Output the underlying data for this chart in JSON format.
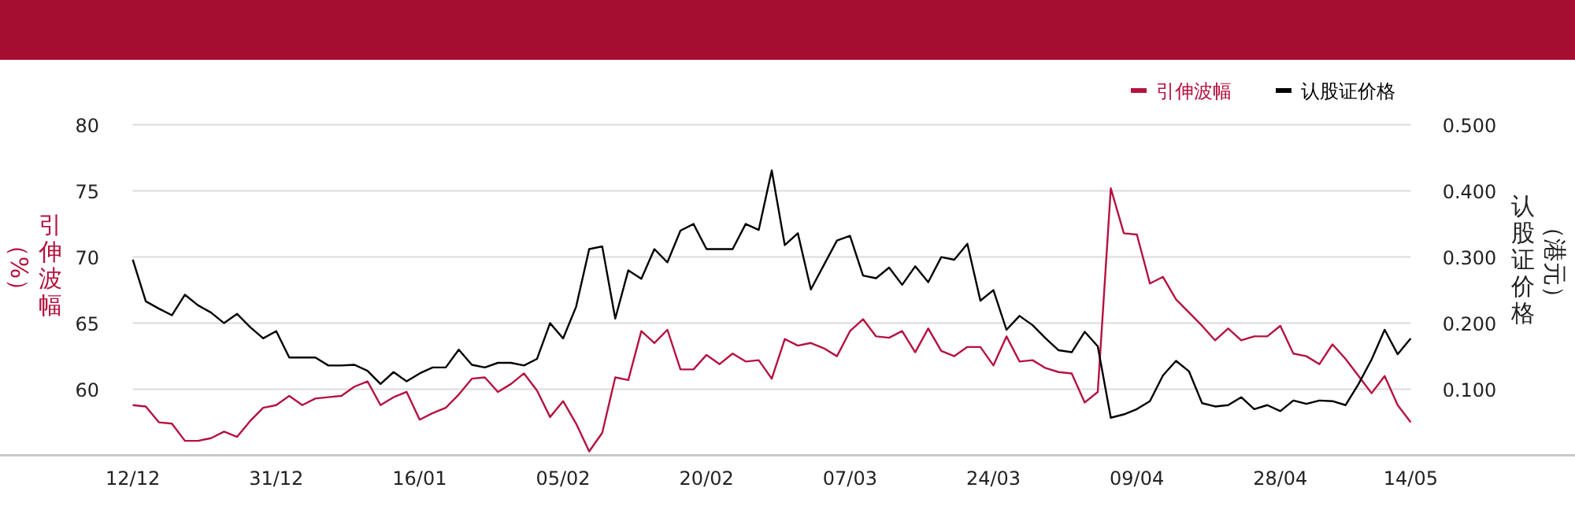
{
  "chart_data": {
    "type": "line",
    "categories": [
      "12/12",
      null,
      null,
      null,
      null,
      null,
      null,
      null,
      null,
      null,
      null,
      "31/12",
      null,
      null,
      null,
      null,
      null,
      null,
      null,
      null,
      null,
      null,
      "16/01",
      null,
      null,
      null,
      null,
      null,
      null,
      null,
      null,
      null,
      null,
      "05/02",
      null,
      null,
      null,
      null,
      null,
      null,
      null,
      null,
      null,
      null,
      "20/02",
      null,
      null,
      null,
      null,
      null,
      null,
      null,
      null,
      null,
      null,
      "07/03",
      null,
      null,
      null,
      null,
      null,
      null,
      null,
      null,
      null,
      null,
      "24/03",
      null,
      null,
      null,
      null,
      null,
      null,
      null,
      null,
      null,
      null,
      "09/04",
      null,
      null,
      null,
      null,
      null,
      null,
      null,
      null,
      null,
      null,
      "28/04",
      null,
      null,
      null,
      null,
      null,
      null,
      null,
      null,
      null,
      "14/05"
    ],
    "series": [
      {
        "name": "引伸波幅",
        "color": "#b5123f",
        "values": [
          58.8,
          58.7,
          57.5,
          57.4,
          56.1,
          56.1,
          56.3,
          56.8,
          56.4,
          57.6,
          58.6,
          58.8,
          59.5,
          58.8,
          59.3,
          59.4,
          59.5,
          60.2,
          60.6,
          58.8,
          59.4,
          59.8,
          57.7,
          58.2,
          58.6,
          59.6,
          60.8,
          60.9,
          59.8,
          60.4,
          61.2,
          59.9,
          57.9,
          59.1,
          57.4,
          55.3,
          56.7,
          60.9,
          60.7,
          64.4,
          63.5,
          64.5,
          61.5,
          61.5,
          62.6,
          61.9,
          62.7,
          62.1,
          62.2,
          60.8,
          63.8,
          63.3,
          63.5,
          63.1,
          62.5,
          64.4,
          65.3,
          64.0,
          63.9,
          64.4,
          62.8,
          64.6,
          62.9,
          62.5,
          63.2,
          63.2,
          61.8,
          64.0,
          62.1,
          62.2,
          61.6,
          61.3,
          61.2,
          59.0,
          59.8,
          75.2,
          71.8,
          71.7,
          68.0,
          68.5,
          66.8,
          65.8,
          64.8,
          63.7,
          64.6,
          63.7,
          64.0,
          64.0,
          64.8,
          62.7,
          62.5,
          61.9,
          63.4,
          62.3,
          61.0,
          59.7,
          61.0,
          58.8,
          57.5
        ]
      },
      {
        "name": "认股证价格",
        "color": "#000000",
        "axis": "y2",
        "values": [
          0.296,
          0.233,
          0.222,
          0.212,
          0.243,
          0.227,
          0.216,
          0.2,
          0.214,
          0.194,
          0.177,
          0.188,
          0.148,
          0.148,
          0.148,
          0.136,
          0.136,
          0.137,
          0.128,
          0.108,
          0.126,
          0.112,
          0.124,
          0.133,
          0.133,
          0.16,
          0.137,
          0.133,
          0.14,
          0.14,
          0.136,
          0.146,
          0.2,
          0.177,
          0.225,
          0.312,
          0.316,
          0.207,
          0.28,
          0.267,
          0.312,
          0.292,
          0.34,
          0.35,
          0.312,
          0.312,
          0.312,
          0.35,
          0.341,
          0.431,
          0.318,
          0.336,
          0.251,
          0.288,
          0.325,
          0.332,
          0.272,
          0.268,
          0.284,
          0.258,
          0.286,
          0.262,
          0.3,
          0.296,
          0.32,
          0.234,
          0.25,
          0.19,
          0.211,
          0.197,
          0.177,
          0.159,
          0.156,
          0.187,
          0.165,
          0.057,
          0.062,
          0.07,
          0.082,
          0.121,
          0.143,
          0.127,
          0.079,
          0.074,
          0.076,
          0.088,
          0.07,
          0.076,
          0.067,
          0.083,
          0.078,
          0.083,
          0.082,
          0.076,
          0.108,
          0.145,
          0.19,
          0.153,
          0.177
        ]
      }
    ],
    "ylabel": "引伸波幅（%）",
    "y2label": "认股证价格（港元）",
    "ylim": [
      55,
      80
    ],
    "yticks": [
      60,
      65,
      70,
      75,
      80
    ],
    "y2lim": [
      0,
      0.5
    ],
    "y2ticks": [
      {
        "value": 0.1,
        "label": "0.100"
      },
      {
        "value": 0.2,
        "label": "0.200"
      },
      {
        "value": 0.3,
        "label": "0.300"
      },
      {
        "value": 0.4,
        "label": "0.400"
      },
      {
        "value": 0.5,
        "label": "0.500"
      }
    ],
    "grid": "y",
    "legend": "top right",
    "marker": "none",
    "line_style": "solid"
  }
}
